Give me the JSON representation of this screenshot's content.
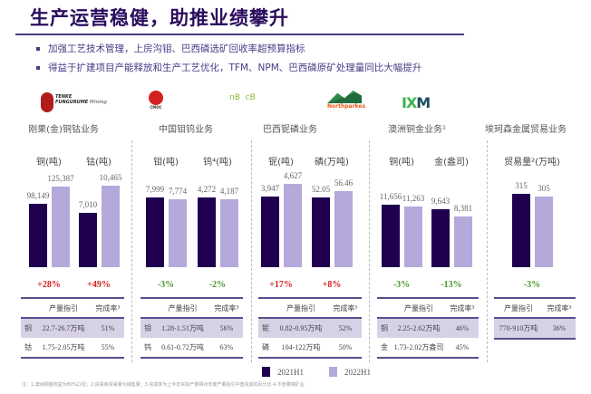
{
  "title": "生产运营稳健，助推业绩攀升",
  "bullets": [
    "加强工艺技术管理，上房沟钼、巴西磷选矿回收率超预算指标",
    "得益于扩建项目产能释放和生产工艺优化，TFM、NPM、巴西磷原矿处理量同比大幅提升"
  ],
  "colors": {
    "h2021": "#1f0050",
    "h2022": "#b4a9da",
    "increase": "#d42020",
    "decrease": "#4a9a2a",
    "accent": "#4b3b86"
  },
  "businesses": [
    {
      "logo": "TENKE FUNGURUME Mining",
      "name": "刚果(金)铜钴业务",
      "metrics": [
        {
          "label": "铜(吨)",
          "v2021": 98149,
          "v2022": 125387,
          "t2021": "98,149",
          "t2022": "125,387",
          "change": "+28%"
        },
        {
          "label": "钴(吨)",
          "v2021": 7010,
          "v2022": 10465,
          "t2021": "7,010",
          "t2022": "10,465",
          "change": "+49%"
        }
      ],
      "table": {
        "headers": [
          "",
          "产量指引",
          "完成率³"
        ],
        "rows": [
          [
            "铜",
            "22.7-26.7万吨",
            "51%"
          ],
          [
            "钴",
            "1.75-2.05万吨",
            "55%"
          ]
        ]
      }
    },
    {
      "logo": "CMOC",
      "name": "中国钼钨业务",
      "metrics": [
        {
          "label": "钼(吨)",
          "v2021": 7999,
          "v2022": 7774,
          "t2021": "7,999",
          "t2022": "7,774",
          "change": "-3%"
        },
        {
          "label": "钨⁴(吨)",
          "v2021": 4272,
          "v2022": 4187,
          "t2021": "4,272",
          "t2022": "4,187",
          "change": "-2%"
        }
      ],
      "table": {
        "headers": [
          "",
          "产量指引",
          "完成率³"
        ],
        "rows": [
          [
            "钼",
            "1.28-1.51万吨",
            "56%"
          ],
          [
            "钨",
            "0.61-0.72万吨",
            "63%"
          ]
        ]
      }
    },
    {
      "logo": "nioBras capeBras",
      "name": "巴西铌磷业务",
      "metrics": [
        {
          "label": "铌(吨)",
          "v2021": 3947,
          "v2022": 4627,
          "t2021": "3,947",
          "t2022": "4,627",
          "change": "+17%"
        },
        {
          "label": "磷(万吨)",
          "v2021": 52.05,
          "v2022": 56.46,
          "t2021": "52.05",
          "t2022": "56.46",
          "change": "+8%"
        }
      ],
      "table": {
        "headers": [
          "",
          "产量指引",
          "完成率³"
        ],
        "rows": [
          [
            "铌",
            "0.82-0.95万吨",
            "52%"
          ],
          [
            "磷",
            "104-122万吨",
            "50%"
          ]
        ]
      }
    },
    {
      "logo": "Northparkes",
      "name": "澳洲铜金业务¹",
      "metrics": [
        {
          "label": "铜(吨)",
          "v2021": 11656,
          "v2022": 11263,
          "t2021": "11,656",
          "t2022": "11,263",
          "change": "-3%"
        },
        {
          "label": "金(盎司)",
          "v2021": 9643,
          "v2022": 8381,
          "t2021": "9,643",
          "t2022": "8,381",
          "change": "-13%"
        }
      ],
      "table": {
        "headers": [
          "",
          "产量指引",
          "完成率³"
        ],
        "rows": [
          [
            "铜",
            "2.25-2.62万吨",
            "46%"
          ],
          [
            "金",
            "1.73-2.02万盎司",
            "45%"
          ]
        ]
      }
    },
    {
      "logo": "IXM",
      "name": "埃珂森金属贸易业务",
      "metrics": [
        {
          "label": "贸易量²(万吨)",
          "v2021": 315,
          "v2022": 305,
          "t2021": "315",
          "t2022": "305",
          "change": "-3%"
        }
      ],
      "table": {
        "headers": [
          "产量指引",
          "完成率³"
        ],
        "rows": [
          [
            "770-910万吨",
            "36%"
          ]
        ]
      }
    }
  ],
  "legend": [
    "2021H1",
    "2022H1"
  ],
  "footnote": "注：1.澳洲铜金权益为80%口径；2.贸易商贸易量为销售量；3.完成率为上半年实际产量相对年度产量指引中值完成的百分比 4.不含豐瑞矿业"
}
